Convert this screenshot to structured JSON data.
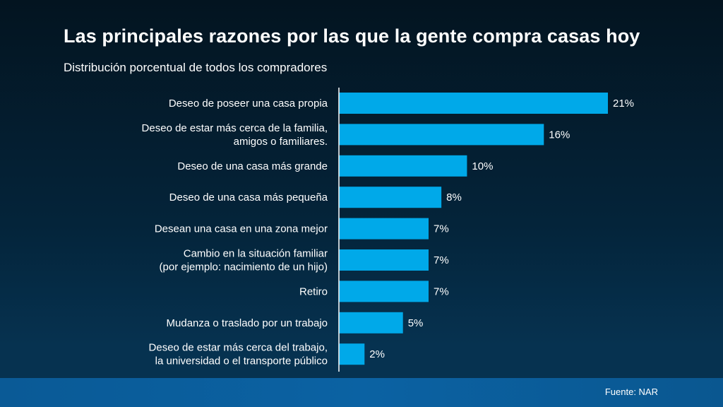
{
  "colors": {
    "bar": "#00a9e9",
    "axis": "#ffffff",
    "text": "#ffffff"
  },
  "chart_data": {
    "type": "bar",
    "orientation": "horizontal",
    "title": "Las principales razones por las que la gente compra casas hoy",
    "subtitle": "Distribución porcentual de todos los compradores",
    "categories": [
      [
        "Deseo de poseer una casa propia"
      ],
      [
        "Deseo de estar más cerca de la familia,",
        "amigos o familiares."
      ],
      [
        "Deseo de una casa más grande"
      ],
      [
        "Deseo de una casa más pequeña"
      ],
      [
        "Desean una casa en una zona mejor"
      ],
      [
        "Cambio en la situación familiar",
        "(por ejemplo: nacimiento de un hijo)"
      ],
      [
        "Retiro"
      ],
      [
        "Mudanza o traslado por un trabajo"
      ],
      [
        "Deseo de estar más cerca del trabajo,",
        "la universidad o el transporte público"
      ]
    ],
    "values": [
      21,
      16,
      10,
      8,
      7,
      7,
      7,
      5,
      2
    ],
    "value_labels": [
      "21%",
      "16%",
      "10%",
      "8%",
      "7%",
      "7%",
      "7%",
      "5%",
      "2%"
    ],
    "xlim": [
      0,
      21
    ],
    "xlabel": "",
    "ylabel": "",
    "grid": false,
    "legend": "none"
  },
  "footer": {
    "source": "Fuente: NAR"
  }
}
